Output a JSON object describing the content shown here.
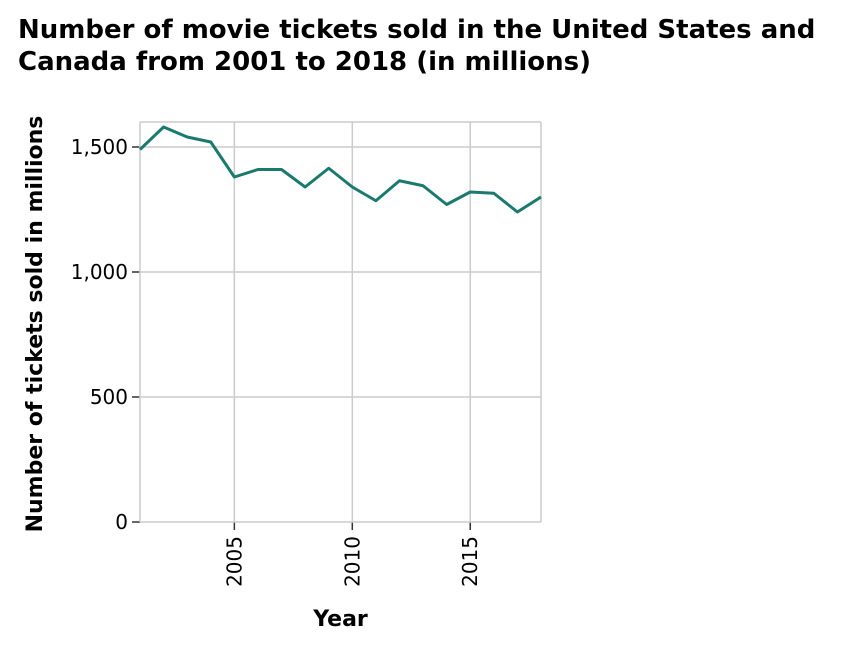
{
  "chart_data": {
    "type": "line",
    "title": "Number of movie tickets sold in the United States and Canada from 2001 to 2018 (in millions)",
    "xlabel": "Year",
    "ylabel": "Number of tickets sold in millions",
    "xlim": [
      2001,
      2018
    ],
    "ylim": [
      0,
      1600
    ],
    "x_ticks": [
      2005,
      2010,
      2015
    ],
    "x_tick_labels": [
      "2005",
      "2010",
      "2015"
    ],
    "y_ticks": [
      0,
      500,
      1000,
      1500
    ],
    "y_tick_labels": [
      "0",
      "500",
      "1,000",
      "1,500"
    ],
    "grid": true,
    "line_color": "#1a7a6e",
    "series": [
      {
        "x": [
          2001,
          2002,
          2003,
          2004,
          2005,
          2006,
          2007,
          2008,
          2009,
          2010,
          2011,
          2012,
          2013,
          2014,
          2015,
          2016,
          2017,
          2018
        ],
        "values": [
          1490,
          1580,
          1540,
          1520,
          1380,
          1410,
          1410,
          1340,
          1415,
          1340,
          1285,
          1365,
          1345,
          1270,
          1320,
          1315,
          1240,
          1300
        ]
      }
    ]
  }
}
